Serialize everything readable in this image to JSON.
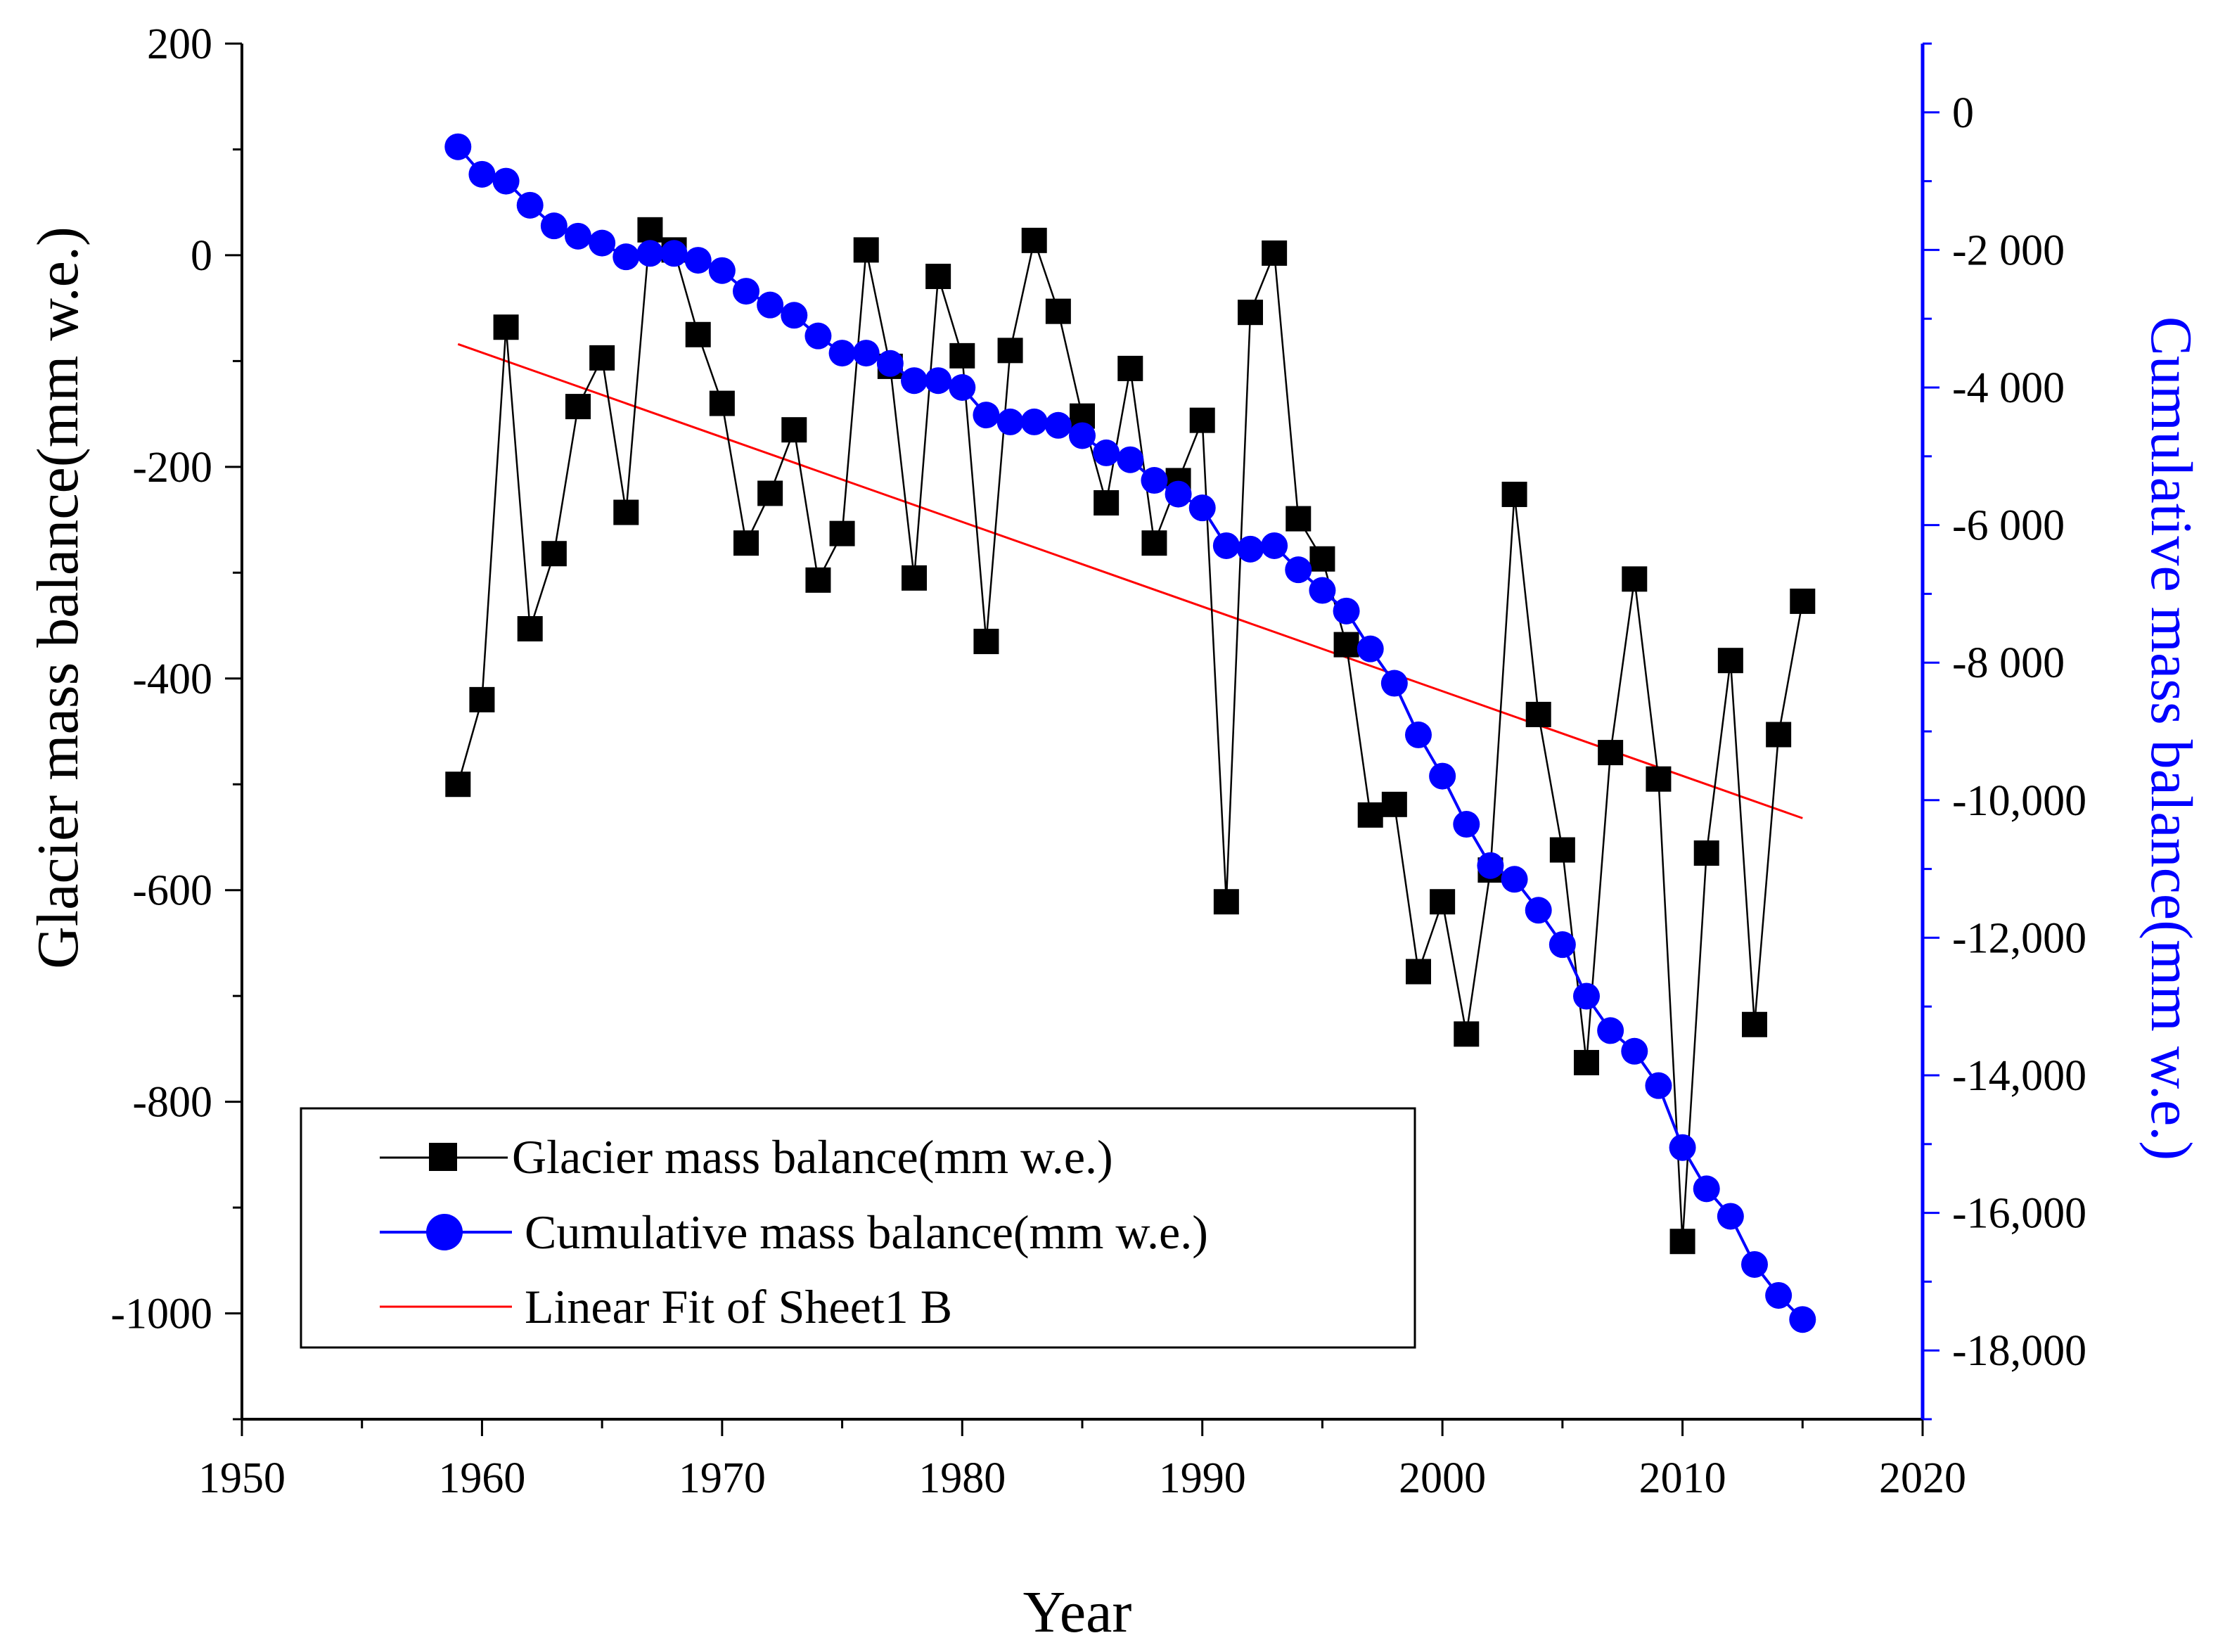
{
  "chart_data": {
    "type": "line",
    "title": "",
    "xlabel": "Year",
    "ylabel": "Glacier mass balance(mm w.e.)",
    "y2label": "Cumulative mass balance(mm w.e.)",
    "xlim": [
      1950,
      2020
    ],
    "ylim": [
      -1100,
      200
    ],
    "y2lim": [
      -19000,
      1000
    ],
    "x_ticks": [
      1950,
      1960,
      1970,
      1980,
      1990,
      2000,
      2010,
      2020
    ],
    "x_tick_labels": [
      "1950",
      "1960",
      "1970",
      "1980",
      "1990",
      "2000",
      "2010",
      "2020"
    ],
    "y_ticks": [
      200,
      0,
      -200,
      -400,
      -600,
      -800,
      -1000
    ],
    "y_tick_labels": [
      "200",
      "0",
      "-200",
      "-400",
      "-600",
      "-800",
      "-1000"
    ],
    "y2_ticks": [
      0,
      -2000,
      -4000,
      -6000,
      -8000,
      -10000,
      -12000,
      -14000,
      -16000,
      -18000
    ],
    "y2_tick_labels": [
      "0",
      "-2 000",
      "-4 000",
      "-6 000",
      "-8 000",
      "-10,000",
      "-12,000",
      "-14,000",
      "-16,000",
      "-18,000"
    ],
    "legend_position": "bottom-left",
    "colors": {
      "annual": "#000000",
      "cumulative": "#0000ff",
      "fit": "#ff0000",
      "right_axis": "#0000ff"
    },
    "series": [
      {
        "name": "Glacier mass balance(mm w.e.)",
        "axis": "left",
        "marker": "square",
        "x": [
          1959,
          1960,
          1961,
          1962,
          1963,
          1964,
          1965,
          1966,
          1967,
          1968,
          1969,
          1970,
          1971,
          1972,
          1973,
          1974,
          1975,
          1976,
          1977,
          1978,
          1979,
          1980,
          1981,
          1982,
          1983,
          1984,
          1985,
          1986,
          1987,
          1988,
          1989,
          1990,
          1991,
          1992,
          1993,
          1994,
          1995,
          1996,
          1997,
          1998,
          1999,
          2000,
          2001,
          2002,
          2003,
          2004,
          2005,
          2006,
          2007,
          2008,
          2009,
          2010,
          2011,
          2012,
          2013,
          2014,
          2015
        ],
        "values": [
          -500,
          -420,
          -68,
          -353,
          -282,
          -143,
          -97,
          -243,
          24,
          5,
          -75,
          -140,
          -272,
          -225,
          -165,
          -307,
          -263,
          5,
          -105,
          -305,
          -20,
          -95,
          -365,
          -90,
          14,
          -53,
          -152,
          -234,
          -107,
          -272,
          -213,
          -156,
          -611,
          -54,
          2,
          -249,
          -287,
          -368,
          -529,
          -519,
          -677,
          -611,
          -736,
          -581,
          -226,
          -434,
          -562,
          -763,
          -470,
          -306,
          -495,
          -932,
          -565,
          -383,
          -727,
          -453,
          -327
        ]
      },
      {
        "name": "Cumulative mass balance(mm w.e.)",
        "axis": "right",
        "marker": "circle",
        "x": [
          1959,
          1960,
          1961,
          1962,
          1963,
          1964,
          1965,
          1966,
          1967,
          1968,
          1969,
          1970,
          1971,
          1972,
          1973,
          1974,
          1975,
          1976,
          1977,
          1978,
          1979,
          1980,
          1981,
          1982,
          1983,
          1984,
          1985,
          1986,
          1987,
          1988,
          1989,
          1990,
          1991,
          1992,
          1993,
          1994,
          1995,
          1996,
          1997,
          1998,
          1999,
          2000,
          2001,
          2002,
          2003,
          2004,
          2005,
          2006,
          2007,
          2008,
          2009,
          2010,
          2011,
          2012,
          2013,
          2014,
          2015
        ],
        "values": [
          -500,
          -900,
          -1000,
          -1350,
          -1650,
          -1800,
          -1900,
          -2100,
          -2050,
          -2050,
          -2150,
          -2300,
          -2600,
          -2800,
          -2950,
          -3250,
          -3500,
          -3500,
          -3650,
          -3900,
          -3900,
          -4000,
          -4400,
          -4500,
          -4500,
          -4550,
          -4700,
          -4950,
          -5050,
          -5350,
          -5550,
          -5750,
          -6300,
          -6350,
          -6300,
          -6650,
          -6950,
          -7250,
          -7800,
          -8300,
          -9050,
          -9650,
          -10350,
          -10950,
          -11150,
          -11600,
          -12100,
          -12850,
          -13350,
          -13650,
          -14150,
          -15050,
          -15650,
          -16050,
          -16750,
          -17200,
          -17550
        ]
      },
      {
        "name": "Linear Fit of Sheet1 B",
        "axis": "left",
        "marker": "none",
        "x": [
          1959,
          2015
        ],
        "values": [
          -84,
          -532
        ]
      }
    ]
  }
}
